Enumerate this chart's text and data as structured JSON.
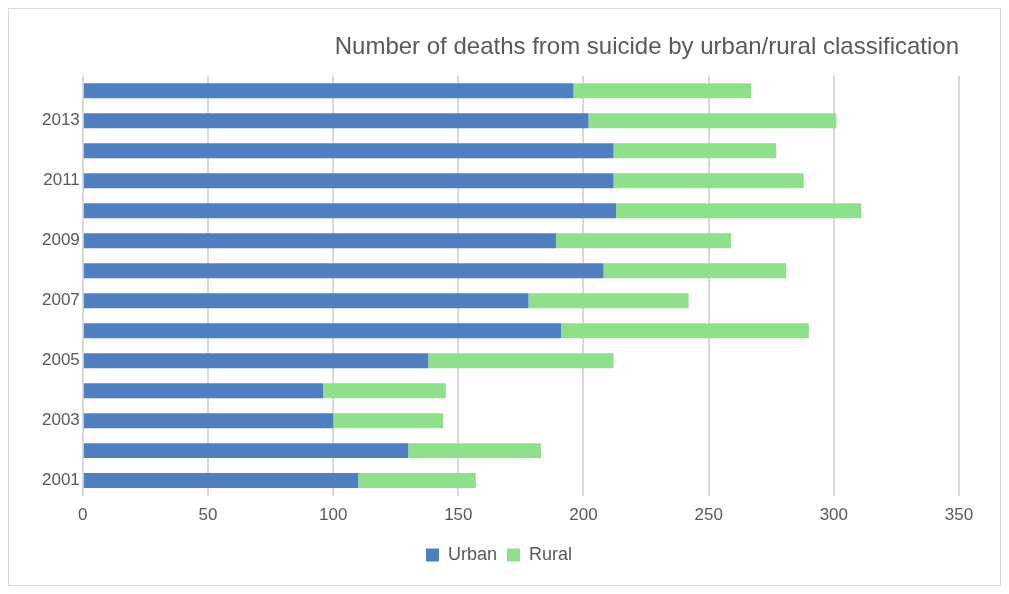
{
  "chart_data": {
    "type": "bar",
    "orientation": "horizontal",
    "stacked": true,
    "title": "Number of deaths from suicide by urban/rural classification",
    "categories": [
      null,
      "2013",
      null,
      "2011",
      null,
      "2009",
      null,
      "2007",
      null,
      "2005",
      null,
      "2003",
      null,
      "2001"
    ],
    "series": [
      {
        "name": "Urban",
        "color": "#4f7fc0",
        "values": [
          196,
          202,
          212,
          212,
          213,
          189,
          208,
          178,
          191,
          138,
          96,
          100,
          130,
          110
        ]
      },
      {
        "name": "Rural",
        "color": "#8ee08a",
        "values": [
          71,
          99,
          65,
          76,
          98,
          70,
          73,
          64,
          99,
          74,
          49,
          44,
          53,
          47
        ]
      }
    ],
    "xlim": [
      0,
      350
    ],
    "xticks": [
      0,
      50,
      100,
      150,
      200,
      250,
      300,
      350
    ],
    "grid": "x",
    "legend": "bottom"
  }
}
